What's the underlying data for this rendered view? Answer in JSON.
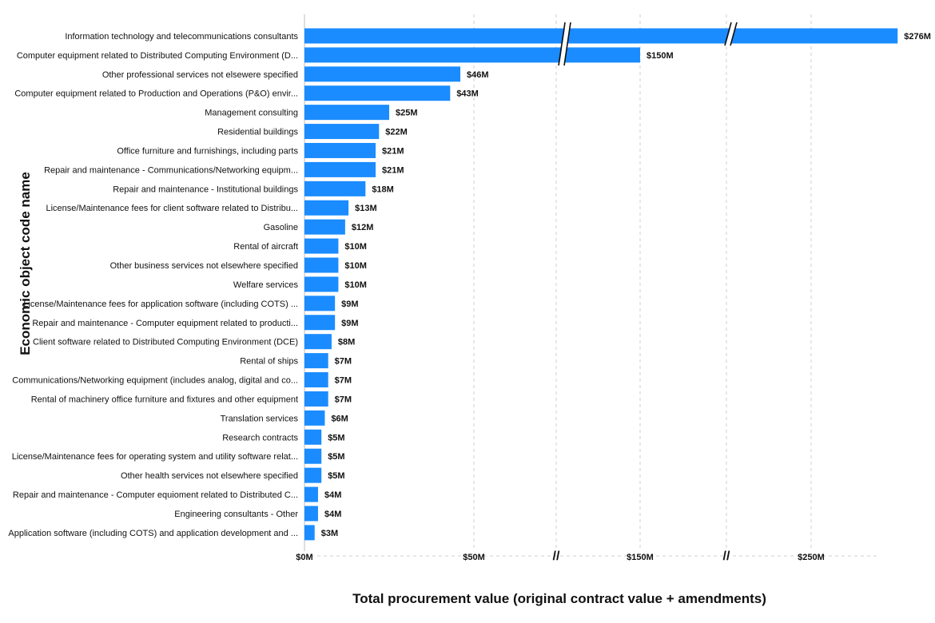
{
  "chart_data": {
    "type": "bar",
    "orientation": "horizontal",
    "xlabel": "Total procurement value (original contract value + amendments)",
    "ylabel": "Economic object code name",
    "bar_color": "#1a8cff",
    "grid": "vertical dashed",
    "axis_breaks": [
      "between $50M and $150M",
      "between $150M and $250M"
    ],
    "x_ticks": [
      "$0M",
      "$50M",
      "//",
      "$150M",
      "//",
      "$250M"
    ],
    "categories": [
      "Information technology and telecommunications consultants",
      "Computer equipment related to Distributed Computing Environment (D...",
      "Other professional services not elsewere specified",
      "Computer equipment related to Production and Operations (P&O) envir...",
      "Management consulting",
      "Residential buildings",
      "Office furniture and furnishings, including parts",
      "Repair and maintenance - Communications/Networking equipm...",
      "Repair and maintenance - Institutional buildings",
      "License/Maintenance fees for client software related to Distribu...",
      "Gasoline",
      "Rental of aircraft",
      "Other business services not elsewhere specified",
      "Welfare services",
      "License/Maintenance fees for application software (including COTS) ...",
      "Repair and maintenance - Computer equipment related to producti...",
      "Client software related to Distributed Computing Environment (DCE)",
      "Rental of ships",
      "Communications/Networking equipment (includes analog, digital and co...",
      "Rental of machinery office furniture and fixtures and other equipment",
      "Translation services",
      "Research contracts",
      "License/Maintenance fees for operating system and utility software relat...",
      "Other health services not elsewhere specified",
      "Repair and maintenance - Computer equioment related to Distributed C...",
      "Engineering consultants - Other",
      "Application software (including COTS) and application development and ..."
    ],
    "values": [
      276,
      150,
      46,
      43,
      25,
      22,
      21,
      21,
      18,
      13,
      12,
      10,
      10,
      10,
      9,
      9,
      8,
      7,
      7,
      7,
      6,
      5,
      5,
      5,
      4,
      4,
      3
    ],
    "value_labels": [
      "$276M",
      "$150M",
      "$46M",
      "$43M",
      "$25M",
      "$22M",
      "$21M",
      "$21M",
      "$18M",
      "$13M",
      "$12M",
      "$10M",
      "$10M",
      "$10M",
      "$9M",
      "$9M",
      "$8M",
      "$7M",
      "$7M",
      "$7M",
      "$6M",
      "$5M",
      "$5M",
      "$5M",
      "$4M",
      "$4M",
      "$3M"
    ]
  }
}
